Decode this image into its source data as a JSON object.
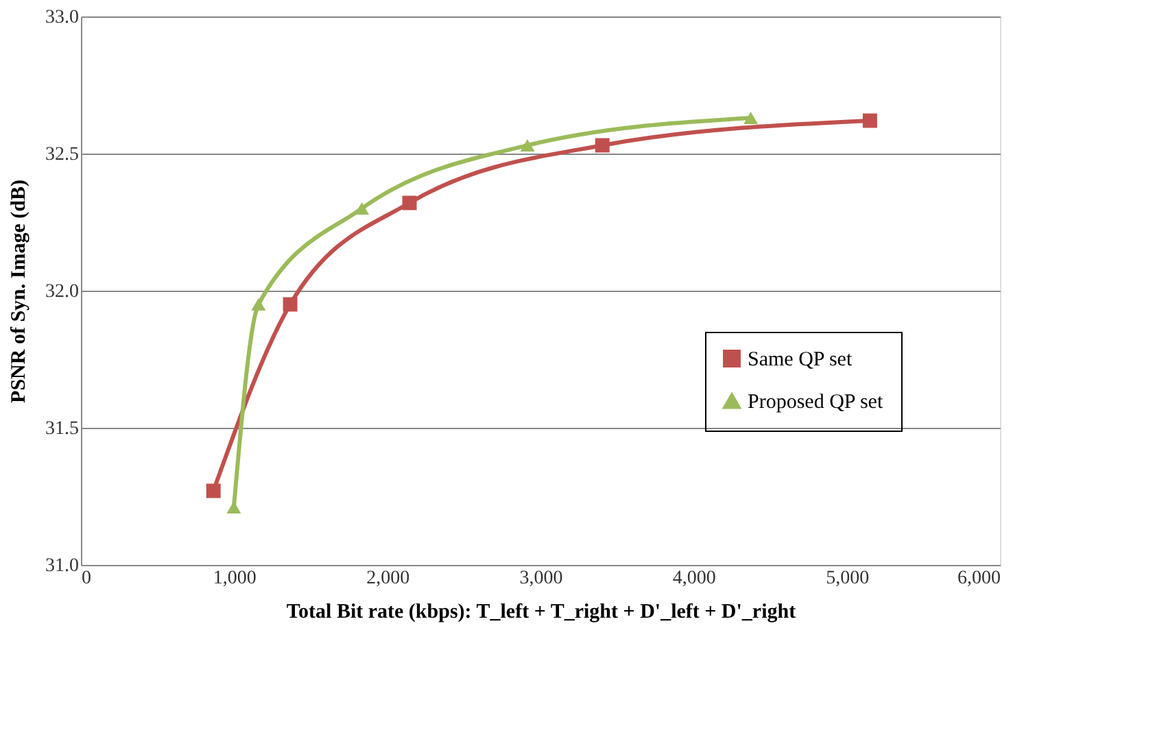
{
  "chart_data": {
    "type": "line",
    "xlabel": "Total Bit rate (kbps): T_left + T_right + D'_left + D'_right",
    "ylabel": "PSNR of Syn. Image (dB)",
    "xlim": [
      0,
      6000
    ],
    "xticks": [
      {
        "value": 0,
        "label": "0"
      },
      {
        "value": 1000,
        "label": "1,000"
      },
      {
        "value": 2000,
        "label": "2,000"
      },
      {
        "value": 3000,
        "label": "3,000"
      },
      {
        "value": 4000,
        "label": "4,000"
      },
      {
        "value": 5000,
        "label": "5,000"
      },
      {
        "value": 6000,
        "label": "6,000"
      }
    ],
    "ylim": [
      31.0,
      33.0
    ],
    "yticks": [
      {
        "value": 31,
        "label": "31.0"
      },
      {
        "value": 31.5,
        "label": "31.5"
      },
      {
        "value": 32,
        "label": "32.0"
      },
      {
        "value": 32.5,
        "label": "32.5"
      },
      {
        "value": 33,
        "label": "33.0"
      }
    ],
    "grid": "y",
    "legend": "right",
    "series": [
      {
        "name": "Same QP set",
        "color": "#c0504d",
        "marker": "square",
        "x": [
          865,
          1366,
          2145,
          3404,
          5151
        ],
        "values": [
          31.27,
          31.95,
          32.32,
          32.53,
          32.62
        ]
      },
      {
        "name": "Proposed QP set",
        "color": "#9bbb59",
        "marker": "triangle",
        "x": [
          998,
          1159,
          1834,
          2915,
          4373
        ],
        "values": [
          31.21,
          31.95,
          32.3,
          32.53,
          32.63
        ]
      }
    ]
  }
}
